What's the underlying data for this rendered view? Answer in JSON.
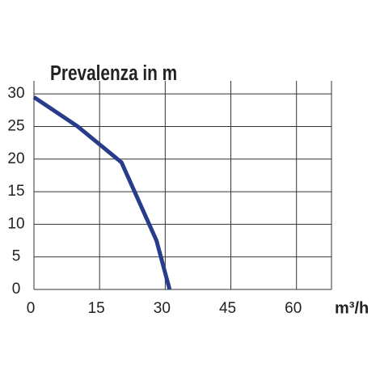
{
  "chart_data": {
    "type": "line",
    "title": "Prevalenza in m",
    "x_label": "m³/h",
    "x": [
      0,
      10,
      20,
      28,
      31
    ],
    "series": [
      {
        "color": "#283c8c",
        "values": [
          29.5,
          25,
          19.5,
          7.5,
          0
        ]
      }
    ],
    "xlim": [
      0,
      68
    ],
    "xticks": [
      0,
      15,
      30,
      45,
      60
    ],
    "ylim": [
      0,
      32
    ],
    "yticks": [
      0,
      5,
      10,
      15,
      20,
      25,
      30
    ],
    "grid": true
  }
}
